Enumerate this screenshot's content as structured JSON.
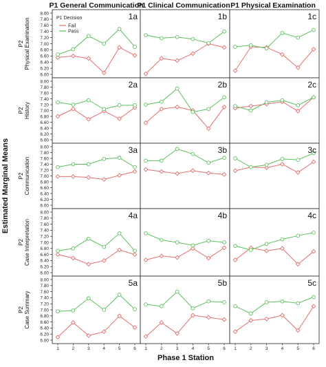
{
  "figure": {
    "y_axis_label": "Estimated Marginal Means",
    "x_axis_label": "Phase 1 Station",
    "column_titles": [
      "P1 General Communication",
      "P1 Clinical Communication",
      "P1 Physical Examination"
    ],
    "row_titles": [
      "P2 Physical Examination",
      "P2 History",
      "P2 Communication",
      "P2 Case Interpretation",
      "P2 Case Summary"
    ],
    "legend": {
      "title": "P1 Decision",
      "items": [
        "Fail",
        "Pass"
      ]
    },
    "colors": {
      "fail": "#e46f6f",
      "pass": "#5cbf5c",
      "frame": "#222222",
      "grid": "#cccccc"
    }
  },
  "chart_data": [
    {
      "panel": "1a",
      "type": "line",
      "x": [
        1,
        2,
        3,
        4,
        5,
        6
      ],
      "ylim": [
        6.0,
        8.0
      ],
      "yticks": [
        "6.00",
        "6.20",
        "6.40",
        "6.60",
        "6.80",
        "7.00",
        "7.20",
        "7.40",
        "7.60",
        "7.80",
        "8.00"
      ],
      "series": [
        {
          "name": "Fail",
          "values": [
            6.55,
            6.6,
            6.52,
            6.05,
            6.88,
            6.62
          ]
        },
        {
          "name": "Pass",
          "values": [
            6.65,
            6.82,
            7.25,
            7.0,
            7.48,
            6.9
          ]
        }
      ]
    },
    {
      "panel": "1b",
      "type": "line",
      "x": [
        1,
        2,
        3,
        4,
        5,
        6
      ],
      "ylim": [
        6.0,
        8.0
      ],
      "series": [
        {
          "name": "Fail",
          "values": [
            6.02,
            6.52,
            6.45,
            6.68,
            7.0,
            6.88
          ]
        },
        {
          "name": "Pass",
          "values": [
            7.28,
            7.18,
            7.22,
            7.15,
            7.02,
            7.4
          ]
        }
      ]
    },
    {
      "panel": "1c",
      "type": "line",
      "x": [
        1,
        2,
        3,
        4,
        5,
        6
      ],
      "ylim": [
        6.0,
        8.0
      ],
      "series": [
        {
          "name": "Fail",
          "values": [
            6.12,
            6.9,
            6.88,
            6.65,
            6.22,
            6.82
          ]
        },
        {
          "name": "Pass",
          "values": [
            6.9,
            6.95,
            6.85,
            7.35,
            7.2,
            7.45
          ]
        }
      ]
    },
    {
      "panel": "2a",
      "type": "line",
      "x": [
        1,
        2,
        3,
        4,
        5,
        6
      ],
      "ylim": [
        6.0,
        8.0
      ],
      "yticks": [
        "6.00",
        "6.20",
        "6.40",
        "6.60",
        "6.80",
        "7.00",
        "7.20",
        "7.40",
        "7.60",
        "7.80",
        "8.00"
      ],
      "series": [
        {
          "name": "Fail",
          "values": [
            6.8,
            7.05,
            6.7,
            6.98,
            6.72,
            7.1
          ]
        },
        {
          "name": "Pass",
          "values": [
            7.28,
            7.2,
            7.35,
            7.05,
            7.18,
            7.18
          ]
        }
      ]
    },
    {
      "panel": "2b",
      "type": "line",
      "x": [
        1,
        2,
        3,
        4,
        5,
        6
      ],
      "ylim": [
        6.0,
        8.0
      ],
      "series": [
        {
          "name": "Fail",
          "values": [
            6.58,
            7.05,
            7.12,
            7.0,
            6.38,
            7.12
          ]
        },
        {
          "name": "Pass",
          "values": [
            7.2,
            7.3,
            7.75,
            6.95,
            7.05,
            7.45
          ]
        }
      ]
    },
    {
      "panel": "2c",
      "type": "line",
      "x": [
        1,
        2,
        3,
        4,
        5,
        6
      ],
      "ylim": [
        6.0,
        8.0
      ],
      "series": [
        {
          "name": "Fail",
          "values": [
            7.08,
            7.15,
            7.22,
            7.3,
            6.98,
            7.45
          ]
        },
        {
          "name": "Pass",
          "values": [
            7.15,
            7.0,
            7.28,
            7.35,
            7.18,
            7.45
          ]
        }
      ]
    },
    {
      "panel": "3a",
      "type": "line",
      "x": [
        1,
        2,
        3,
        4,
        5,
        6
      ],
      "ylim": [
        6.0,
        8.0
      ],
      "yticks": [
        "6.00",
        "6.20",
        "6.40",
        "6.60",
        "6.80",
        "7.00",
        "7.20",
        "7.40",
        "7.60",
        "7.80",
        "8.00"
      ],
      "series": [
        {
          "name": "Fail",
          "values": [
            6.98,
            6.98,
            6.95,
            6.88,
            7.02,
            7.15
          ]
        },
        {
          "name": "Pass",
          "values": [
            7.3,
            7.4,
            7.4,
            7.58,
            7.62,
            7.3
          ]
        }
      ]
    },
    {
      "panel": "3b",
      "type": "line",
      "x": [
        1,
        2,
        3,
        4,
        5,
        6
      ],
      "ylim": [
        6.0,
        8.0
      ],
      "series": [
        {
          "name": "Fail",
          "values": [
            7.22,
            7.15,
            7.08,
            7.18,
            7.1,
            7.05
          ]
        },
        {
          "name": "Pass",
          "values": [
            7.52,
            7.52,
            7.92,
            7.75,
            7.45,
            7.62
          ]
        }
      ]
    },
    {
      "panel": "3c",
      "type": "line",
      "x": [
        1,
        2,
        3,
        4,
        5,
        6
      ],
      "ylim": [
        6.0,
        8.0
      ],
      "series": [
        {
          "name": "Fail",
          "values": [
            7.18,
            7.3,
            7.28,
            7.4,
            7.12,
            7.48
          ]
        },
        {
          "name": "Pass",
          "values": [
            7.6,
            7.3,
            7.38,
            7.58,
            7.55,
            7.78
          ]
        }
      ]
    },
    {
      "panel": "4a",
      "type": "line",
      "x": [
        1,
        2,
        3,
        4,
        5,
        6
      ],
      "ylim": [
        6.0,
        8.0
      ],
      "yticks": [
        "6.00",
        "6.20",
        "6.40",
        "6.60",
        "6.80",
        "7.00",
        "7.20",
        "7.40",
        "7.60",
        "7.80",
        "8.00"
      ],
      "series": [
        {
          "name": "Fail",
          "values": [
            6.6,
            6.48,
            6.28,
            6.4,
            6.75,
            6.6
          ]
        },
        {
          "name": "Pass",
          "values": [
            6.72,
            6.8,
            7.12,
            6.85,
            7.3,
            6.72
          ]
        }
      ]
    },
    {
      "panel": "4b",
      "type": "line",
      "x": [
        1,
        2,
        3,
        4,
        5,
        6
      ],
      "ylim": [
        6.0,
        8.0
      ],
      "series": [
        {
          "name": "Fail",
          "values": [
            6.42,
            6.55,
            6.5,
            6.8,
            6.48,
            6.82
          ]
        },
        {
          "name": "Pass",
          "values": [
            7.3,
            7.08,
            7.0,
            6.9,
            7.05,
            7.0
          ]
        }
      ]
    },
    {
      "panel": "4c",
      "type": "line",
      "x": [
        1,
        2,
        3,
        4,
        5,
        6
      ],
      "ylim": [
        6.0,
        8.0
      ],
      "series": [
        {
          "name": "Fail",
          "values": [
            6.42,
            6.82,
            6.72,
            6.8,
            6.28,
            6.7
          ]
        },
        {
          "name": "Pass",
          "values": [
            6.88,
            6.75,
            6.95,
            7.1,
            7.22,
            7.32
          ]
        }
      ]
    },
    {
      "panel": "5a",
      "type": "line",
      "x": [
        1,
        2,
        3,
        4,
        5,
        6
      ],
      "ylim": [
        6.0,
        8.0
      ],
      "yticks": [
        "6.00",
        "6.20",
        "6.40",
        "6.60",
        "6.80",
        "7.00",
        "7.20",
        "7.40",
        "7.60",
        "7.80",
        "8.00"
      ],
      "series": [
        {
          "name": "Fail",
          "values": [
            6.1,
            6.58,
            6.15,
            6.28,
            6.8,
            6.42
          ]
        },
        {
          "name": "Pass",
          "values": [
            6.95,
            6.98,
            7.38,
            7.0,
            7.5,
            7.02
          ]
        }
      ]
    },
    {
      "panel": "5b",
      "type": "line",
      "x": [
        1,
        2,
        3,
        4,
        5,
        6
      ],
      "ylim": [
        6.0,
        8.0
      ],
      "series": [
        {
          "name": "Fail",
          "values": [
            6.12,
            6.58,
            6.22,
            6.82,
            6.75,
            6.68
          ]
        },
        {
          "name": "Pass",
          "values": [
            7.18,
            7.12,
            7.6,
            7.05,
            7.28,
            7.25
          ]
        }
      ]
    },
    {
      "panel": "5c",
      "type": "line",
      "x": [
        1,
        2,
        3,
        4,
        5,
        6
      ],
      "ylim": [
        6.0,
        8.0
      ],
      "series": [
        {
          "name": "Fail",
          "values": [
            6.28,
            6.65,
            6.7,
            6.82,
            6.32,
            7.12
          ]
        },
        {
          "name": "Pass",
          "values": [
            7.12,
            6.88,
            7.25,
            7.28,
            7.22,
            7.42
          ]
        }
      ]
    }
  ]
}
